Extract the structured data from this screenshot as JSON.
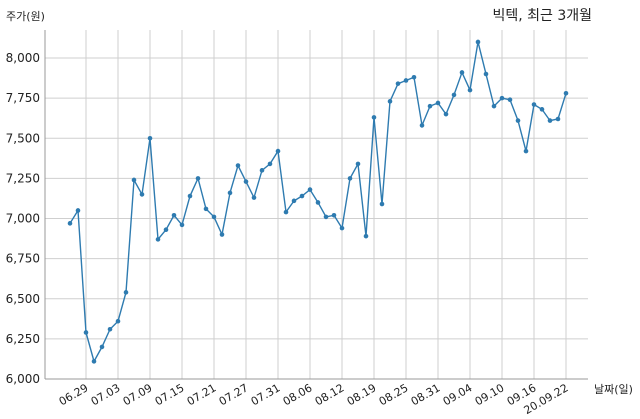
{
  "chart_data": {
    "type": "line",
    "title": "빅텍, 최근 3개월",
    "ylabel": "주가(원)",
    "xlabel": "날짜(일)",
    "ylim": [
      6000,
      8100
    ],
    "yticks": [
      6000,
      6250,
      6500,
      6750,
      7000,
      7250,
      7500,
      7750,
      8000
    ],
    "ytick_labels": [
      "6,000",
      "6,250",
      "6,500",
      "6,750",
      "7,000",
      "7,250",
      "7,500",
      "7,750",
      "8,000"
    ],
    "xtick_labels": [
      "06.29",
      "07.03",
      "07.09",
      "07.15",
      "07.21",
      "07.27",
      "07.31",
      "08.06",
      "08.12",
      "08.19",
      "08.25",
      "08.31",
      "09.04",
      "09.10",
      "09.16",
      "20.09.22"
    ],
    "xtick_index": [
      2,
      6,
      10,
      14,
      18,
      22,
      26,
      30,
      34,
      38,
      42,
      46,
      50,
      54,
      58,
      62
    ],
    "grid": true,
    "color": "#2e7bb0",
    "series": [
      {
        "values": [
          6970,
          7050,
          6290,
          6110,
          6200,
          6310,
          6360,
          6540,
          7240,
          7150,
          7500,
          6870,
          6930,
          7020,
          6960,
          7140,
          7250,
          7060,
          7010,
          6900,
          7160,
          7330,
          7230,
          7130,
          7300,
          7340,
          7420,
          7040,
          7110,
          7140,
          7180,
          7100,
          7010,
          7020,
          6940,
          7250,
          7340,
          6890,
          7630,
          7090,
          7730,
          7840,
          7860,
          7880,
          7580,
          7700,
          7720,
          7650,
          7770,
          7910,
          7800,
          8100,
          7900,
          7700,
          7750,
          7740,
          7610,
          7420,
          7710,
          7680,
          7610,
          7620,
          7780
        ]
      }
    ]
  }
}
